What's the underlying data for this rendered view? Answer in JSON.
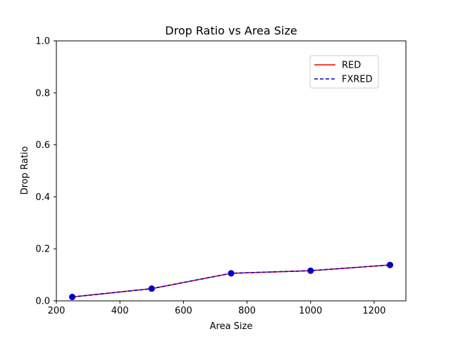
{
  "chart_data": {
    "type": "line",
    "title": "Drop Ratio vs Area Size",
    "xlabel": "Area Size",
    "ylabel": "Drop Ratio",
    "xlim": [
      200,
      1300
    ],
    "ylim": [
      0.0,
      1.0
    ],
    "xticks": [
      "200",
      "400",
      "600",
      "800",
      "1000",
      "1200"
    ],
    "xtick_values": [
      200,
      400,
      600,
      800,
      1000,
      1200
    ],
    "yticks": [
      "0.0",
      "0.2",
      "0.4",
      "0.6",
      "0.8",
      "1.0"
    ],
    "ytick_values": [
      0.0,
      0.2,
      0.4,
      0.6,
      0.8,
      1.0
    ],
    "grid": false,
    "legend_position": "upper-right",
    "x": [
      250,
      500,
      750,
      1000,
      1250
    ],
    "series": [
      {
        "name": "RED",
        "values": [
          0.015,
          0.047,
          0.106,
          0.116,
          0.138
        ],
        "color": "#ff0000",
        "style": "solid",
        "marker": "circle"
      },
      {
        "name": "FXRED",
        "values": [
          0.015,
          0.047,
          0.106,
          0.116,
          0.138
        ],
        "color": "#0000cc",
        "style": "dashed",
        "marker": "circle"
      }
    ]
  }
}
